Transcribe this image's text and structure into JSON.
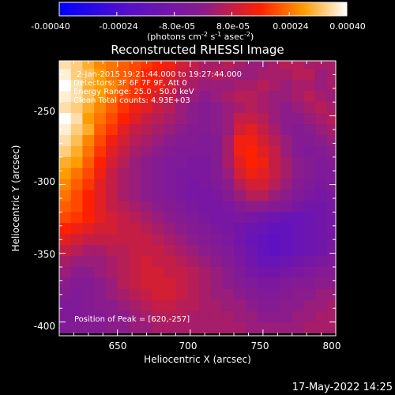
{
  "colorbar": {
    "tick_labels": [
      "-0.00040",
      "-0.00024",
      "-8.0e-05",
      "8.0e-05",
      "0.00024",
      "0.00040"
    ],
    "range": [
      -0.0004,
      0.0004
    ],
    "units_main": "(photons cm",
    "units_exp1": "-2",
    "units_mid": " s",
    "units_exp2": "-1",
    "units_end": " asec",
    "units_exp3": "-2",
    "units_close": ")"
  },
  "footer": {
    "timestamp": "17-May-2022 14:25"
  },
  "colors": {
    "low": "#0000ff",
    "mid": "#7a1ea0",
    "high": "#ffffff"
  },
  "chart_data": {
    "type": "heatmap",
    "title": "Reconstructed RHESSI Image",
    "xlabel": "Heliocentric X (arcsec)",
    "ylabel": "Heliocentric Y (arcsec)",
    "xlim": [
      610,
      800
    ],
    "ylim": [
      -410,
      -210
    ],
    "x_ticks": [
      650,
      700,
      750,
      800
    ],
    "y_ticks": [
      -250,
      -300,
      -350,
      -400
    ],
    "annotations": [
      "2-Jan-2015 19:21:44.000 to 19:27:44.000",
      "Detectors: 3F 6F 7F 9F, Att 0",
      "Energy Range: 25.0 - 50.0 keV",
      "Clean    Total counts: 4.93E+03"
    ],
    "peak_label": "Position of Peak = [620,-257]",
    "peak": [
      620,
      -257
    ],
    "rows_y_top_to_bottom": [
      -212,
      -220,
      -228,
      -236,
      -244,
      -252,
      -260,
      -268,
      -276,
      -284,
      -292,
      -300,
      -308,
      -316,
      -324,
      -332,
      -340,
      -348,
      -356,
      -364,
      -372,
      -380,
      -388,
      -396,
      -404
    ],
    "cols_x": [
      614,
      622,
      630,
      638,
      646,
      654,
      662,
      670,
      678,
      686,
      694,
      702,
      710,
      718,
      726,
      734,
      742,
      750,
      758,
      766,
      774,
      782,
      790,
      798
    ],
    "values_1e-5": [
      [
        36,
        34,
        30,
        26,
        24,
        22,
        20,
        18,
        16,
        14,
        10,
        8,
        4,
        4,
        6,
        4,
        2,
        2,
        4,
        6,
        6,
        4,
        4,
        4
      ],
      [
        38,
        34,
        32,
        28,
        24,
        22,
        20,
        16,
        14,
        12,
        8,
        6,
        4,
        6,
        4,
        2,
        2,
        4,
        4,
        4,
        6,
        6,
        2,
        4
      ],
      [
        40,
        36,
        30,
        28,
        26,
        22,
        18,
        16,
        14,
        10,
        6,
        4,
        2,
        2,
        2,
        4,
        4,
        6,
        4,
        2,
        4,
        4,
        2,
        4
      ],
      [
        38,
        36,
        32,
        28,
        24,
        20,
        18,
        14,
        10,
        8,
        4,
        2,
        0,
        2,
        4,
        6,
        6,
        4,
        2,
        2,
        4,
        6,
        4,
        2
      ],
      [
        36,
        34,
        30,
        26,
        22,
        18,
        14,
        12,
        8,
        6,
        2,
        0,
        -2,
        0,
        2,
        4,
        6,
        4,
        2,
        0,
        2,
        4,
        6,
        4
      ],
      [
        40,
        36,
        28,
        24,
        20,
        16,
        12,
        8,
        6,
        4,
        2,
        0,
        -2,
        0,
        2,
        8,
        8,
        6,
        2,
        0,
        0,
        2,
        4,
        6
      ],
      [
        38,
        34,
        30,
        22,
        18,
        12,
        8,
        6,
        4,
        2,
        0,
        -2,
        -2,
        0,
        2,
        10,
        12,
        8,
        4,
        0,
        -2,
        0,
        2,
        4
      ],
      [
        36,
        32,
        26,
        20,
        14,
        10,
        6,
        4,
        2,
        0,
        -2,
        -2,
        -4,
        -2,
        4,
        14,
        14,
        10,
        6,
        2,
        -2,
        -2,
        0,
        2
      ],
      [
        34,
        30,
        24,
        18,
        12,
        8,
        4,
        2,
        0,
        -2,
        -4,
        -4,
        -4,
        -2,
        4,
        14,
        16,
        12,
        8,
        2,
        -2,
        -4,
        -2,
        0
      ],
      [
        30,
        28,
        22,
        16,
        10,
        6,
        2,
        0,
        -2,
        -4,
        -4,
        -6,
        -6,
        -2,
        4,
        12,
        16,
        14,
        8,
        4,
        0,
        -2,
        -4,
        -2
      ],
      [
        28,
        24,
        20,
        14,
        8,
        4,
        2,
        0,
        -2,
        -4,
        -6,
        -6,
        -6,
        -2,
        2,
        10,
        14,
        12,
        8,
        4,
        0,
        -2,
        -4,
        -4
      ],
      [
        26,
        22,
        18,
        12,
        8,
        4,
        2,
        0,
        -2,
        -4,
        -6,
        -8,
        -6,
        -4,
        0,
        6,
        10,
        10,
        6,
        2,
        -2,
        -4,
        -6,
        -4
      ],
      [
        24,
        20,
        16,
        12,
        8,
        4,
        2,
        0,
        -2,
        -4,
        -6,
        -8,
        -8,
        -6,
        -2,
        2,
        6,
        6,
        2,
        0,
        -4,
        -6,
        -8,
        -6
      ],
      [
        22,
        20,
        16,
        12,
        8,
        6,
        4,
        2,
        0,
        -2,
        -4,
        -6,
        -8,
        -8,
        -6,
        -2,
        0,
        0,
        -2,
        -4,
        -8,
        -10,
        -10,
        -8
      ],
      [
        20,
        18,
        16,
        12,
        10,
        8,
        6,
        4,
        2,
        0,
        -2,
        -4,
        -6,
        -8,
        -8,
        -6,
        -8,
        -10,
        -12,
        -14,
        -14,
        -12,
        -10,
        -8
      ],
      [
        16,
        14,
        12,
        10,
        10,
        8,
        8,
        6,
        4,
        2,
        0,
        -2,
        -4,
        -6,
        -8,
        -10,
        -12,
        -14,
        -16,
        -16,
        -14,
        -12,
        -10,
        -8
      ],
      [
        12,
        10,
        8,
        8,
        8,
        8,
        8,
        8,
        6,
        4,
        2,
        0,
        -2,
        -4,
        -6,
        -10,
        -14,
        -16,
        -18,
        -16,
        -14,
        -12,
        -10,
        -8
      ],
      [
        8,
        6,
        4,
        4,
        6,
        6,
        8,
        8,
        8,
        6,
        4,
        2,
        0,
        -2,
        -4,
        -8,
        -12,
        -16,
        -18,
        -16,
        -14,
        -12,
        -10,
        -6
      ],
      [
        4,
        2,
        2,
        2,
        4,
        6,
        8,
        10,
        8,
        8,
        6,
        4,
        2,
        0,
        -2,
        -6,
        -10,
        -14,
        -14,
        -12,
        -10,
        -8,
        -6,
        -4
      ],
      [
        2,
        0,
        0,
        2,
        4,
        6,
        8,
        10,
        10,
        8,
        8,
        6,
        4,
        2,
        0,
        -4,
        -8,
        -10,
        -10,
        -8,
        -6,
        -4,
        -2,
        -2
      ],
      [
        0,
        -2,
        -2,
        0,
        2,
        6,
        8,
        10,
        10,
        10,
        8,
        6,
        4,
        2,
        0,
        -2,
        -4,
        -6,
        -6,
        -4,
        -2,
        -2,
        0,
        0
      ],
      [
        -2,
        -4,
        -2,
        0,
        2,
        4,
        6,
        8,
        10,
        10,
        8,
        6,
        4,
        2,
        2,
        0,
        -2,
        -4,
        -4,
        -2,
        0,
        0,
        2,
        2
      ],
      [
        -4,
        -4,
        -2,
        0,
        0,
        2,
        4,
        6,
        8,
        8,
        6,
        6,
        4,
        4,
        2,
        2,
        0,
        -2,
        -2,
        0,
        0,
        2,
        2,
        4
      ],
      [
        -4,
        -4,
        -2,
        -2,
        0,
        0,
        2,
        4,
        6,
        6,
        6,
        4,
        4,
        4,
        4,
        2,
        2,
        0,
        0,
        0,
        2,
        2,
        4,
        4
      ],
      [
        -4,
        -2,
        -2,
        -2,
        0,
        0,
        2,
        2,
        4,
        4,
        4,
        4,
        4,
        4,
        4,
        4,
        2,
        2,
        2,
        2,
        2,
        4,
        4,
        4
      ]
    ]
  }
}
